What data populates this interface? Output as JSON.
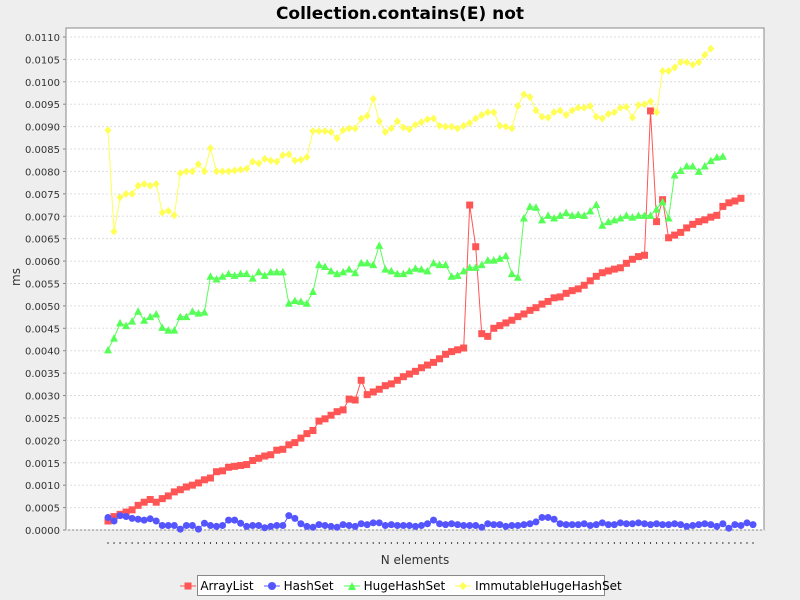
{
  "chart_data": {
    "type": "line",
    "title": "Collection.contains(E) not",
    "xlabel": "N elements",
    "ylabel": "ms",
    "ylim": [
      0,
      0.0112
    ],
    "yticks": [
      "0.0000",
      "0.0005",
      "0.0010",
      "0.0015",
      "0.0020",
      "0.0025",
      "0.0030",
      "0.0035",
      "0.0040",
      "0.0045",
      "0.0050",
      "0.0055",
      "0.0060",
      "0.0065",
      "0.0070",
      "0.0075",
      "0.0080",
      "0.0085",
      "0.0090",
      "0.0095",
      "0.0100",
      "0.0105",
      "0.0110"
    ],
    "grid": true,
    "legend_position": "bottom",
    "series": [
      {
        "name": "ArrayList",
        "color": "#ff5555",
        "marker": "square",
        "values": [
          0.0002,
          0.0003,
          0.00035,
          0.0004,
          0.00045,
          0.00055,
          0.00062,
          0.00068,
          0.00062,
          0.0007,
          0.00076,
          0.00085,
          0.0009,
          0.00096,
          0.001,
          0.00105,
          0.00112,
          0.00116,
          0.0013,
          0.00132,
          0.0014,
          0.00142,
          0.00144,
          0.00146,
          0.00155,
          0.0016,
          0.00165,
          0.00168,
          0.00178,
          0.0018,
          0.0019,
          0.00195,
          0.00205,
          0.00215,
          0.00222,
          0.00243,
          0.00248,
          0.00256,
          0.00264,
          0.00268,
          0.00292,
          0.0029,
          0.00334,
          0.00302,
          0.00308,
          0.00314,
          0.00322,
          0.00326,
          0.00334,
          0.00342,
          0.00348,
          0.00354,
          0.00362,
          0.00368,
          0.00374,
          0.00382,
          0.00392,
          0.00398,
          0.00402,
          0.00406,
          0.00725,
          0.00632,
          0.00438,
          0.00432,
          0.0045,
          0.00456,
          0.00462,
          0.00468,
          0.00476,
          0.00482,
          0.0049,
          0.00496,
          0.00504,
          0.0051,
          0.00518,
          0.0052,
          0.00528,
          0.00534,
          0.00538,
          0.00546,
          0.00556,
          0.00566,
          0.00574,
          0.00578,
          0.00582,
          0.00585,
          0.00595,
          0.00604,
          0.0061,
          0.00613,
          0.00935,
          0.00688,
          0.00737,
          0.00652,
          0.00658,
          0.00664,
          0.00674,
          0.00682,
          0.00688,
          0.00692,
          0.00698,
          0.00702,
          0.00722,
          0.0073,
          0.00734,
          0.0074
        ]
      },
      {
        "name": "HashSet",
        "color": "#5555ff",
        "marker": "circle",
        "values": [
          0.00028,
          0.0002,
          0.00032,
          0.0003,
          0.00026,
          0.00024,
          0.00022,
          0.00025,
          0.0002,
          0.0001,
          0.0001,
          0.0001,
          2e-05,
          0.0001,
          0.0001,
          2e-05,
          0.00015,
          0.0001,
          8e-05,
          0.0001,
          0.00022,
          0.00022,
          0.00015,
          8e-05,
          0.0001,
          0.0001,
          5e-05,
          8e-05,
          0.0001,
          0.0001,
          0.00032,
          0.00026,
          0.00014,
          8e-05,
          6e-05,
          0.00012,
          0.0001,
          8e-05,
          6e-05,
          0.00012,
          0.0001,
          8e-05,
          0.00014,
          0.00012,
          0.00016,
          0.00016,
          0.0001,
          0.00012,
          0.0001,
          0.0001,
          0.0001,
          8e-05,
          0.0001,
          0.00014,
          0.00022,
          0.00014,
          0.00012,
          0.00014,
          0.00012,
          0.0001,
          0.0001,
          0.0001,
          6e-05,
          0.00014,
          0.00012,
          0.00012,
          8e-05,
          0.0001,
          0.0001,
          0.00012,
          0.00014,
          0.00018,
          0.00028,
          0.00028,
          0.00024,
          0.00014,
          0.00012,
          0.00012,
          0.00012,
          0.00014,
          0.0001,
          0.00012,
          0.00016,
          0.00012,
          0.00012,
          0.00016,
          0.00014,
          0.00014,
          0.00016,
          0.00014,
          0.00012,
          0.00014,
          0.00012,
          0.00012,
          0.00014,
          0.00012,
          8e-05,
          0.0001,
          0.00012,
          0.00014,
          0.00012,
          8e-05,
          0.00014,
          4e-05,
          0.00012,
          0.0001,
          0.00016,
          0.00012
        ]
      },
      {
        "name": "HugeHashSet",
        "color": "#55ff55",
        "marker": "triangle",
        "values": [
          0.00402,
          0.00428,
          0.00462,
          0.00456,
          0.00466,
          0.00488,
          0.00468,
          0.00476,
          0.00482,
          0.00452,
          0.00446,
          0.00446,
          0.00476,
          0.00476,
          0.00488,
          0.00484,
          0.00486,
          0.00566,
          0.0056,
          0.00566,
          0.00572,
          0.00568,
          0.00572,
          0.00572,
          0.00562,
          0.00576,
          0.00568,
          0.00576,
          0.00576,
          0.00576,
          0.00506,
          0.00512,
          0.0051,
          0.00506,
          0.00532,
          0.00592,
          0.00588,
          0.00578,
          0.00572,
          0.00576,
          0.00582,
          0.00574,
          0.00596,
          0.00596,
          0.00592,
          0.00635,
          0.00582,
          0.00578,
          0.00572,
          0.00572,
          0.00578,
          0.00584,
          0.00582,
          0.00578,
          0.00596,
          0.00592,
          0.00592,
          0.00566,
          0.00568,
          0.00578,
          0.00586,
          0.00586,
          0.00592,
          0.00602,
          0.00602,
          0.00606,
          0.00612,
          0.00572,
          0.00564,
          0.00696,
          0.00722,
          0.0072,
          0.00692,
          0.00702,
          0.00696,
          0.00702,
          0.00708,
          0.00702,
          0.00704,
          0.00702,
          0.00712,
          0.00726,
          0.0068,
          0.00688,
          0.00692,
          0.00696,
          0.00702,
          0.00698,
          0.00702,
          0.00702,
          0.00702,
          0.00716,
          0.00732,
          0.00696,
          0.00792,
          0.00802,
          0.00812,
          0.00812,
          0.008,
          0.00812,
          0.00824,
          0.00832,
          0.00834
        ]
      },
      {
        "name": "ImmutableHugeHashSet",
        "color": "#ffff55",
        "marker": "diamond",
        "values": [
          0.00892,
          0.00666,
          0.00742,
          0.0075,
          0.0075,
          0.00768,
          0.00772,
          0.00768,
          0.00772,
          0.00708,
          0.00712,
          0.00702,
          0.00796,
          0.008,
          0.008,
          0.00816,
          0.008,
          0.00852,
          0.008,
          0.008,
          0.008,
          0.00802,
          0.00804,
          0.00806,
          0.00822,
          0.00818,
          0.00828,
          0.00824,
          0.00822,
          0.00836,
          0.00838,
          0.00824,
          0.00826,
          0.00832,
          0.0089,
          0.0089,
          0.0089,
          0.00888,
          0.00874,
          0.00892,
          0.00896,
          0.00896,
          0.00918,
          0.00924,
          0.00962,
          0.00912,
          0.00888,
          0.00896,
          0.00912,
          0.00898,
          0.00894,
          0.00904,
          0.0091,
          0.00916,
          0.00918,
          0.00902,
          0.009,
          0.009,
          0.00896,
          0.00902,
          0.00908,
          0.00918,
          0.00926,
          0.00932,
          0.00932,
          0.00902,
          0.009,
          0.00896,
          0.00946,
          0.00972,
          0.00966,
          0.00936,
          0.00922,
          0.0092,
          0.00932,
          0.00936,
          0.00926,
          0.00936,
          0.00942,
          0.00942,
          0.00946,
          0.00922,
          0.00918,
          0.00928,
          0.00932,
          0.00942,
          0.00944,
          0.0092,
          0.00948,
          0.0095,
          0.00956,
          0.00932,
          0.01024,
          0.01024,
          0.01032,
          0.01044,
          0.01044,
          0.01038,
          0.01044,
          0.0106,
          0.01074
        ]
      }
    ]
  }
}
